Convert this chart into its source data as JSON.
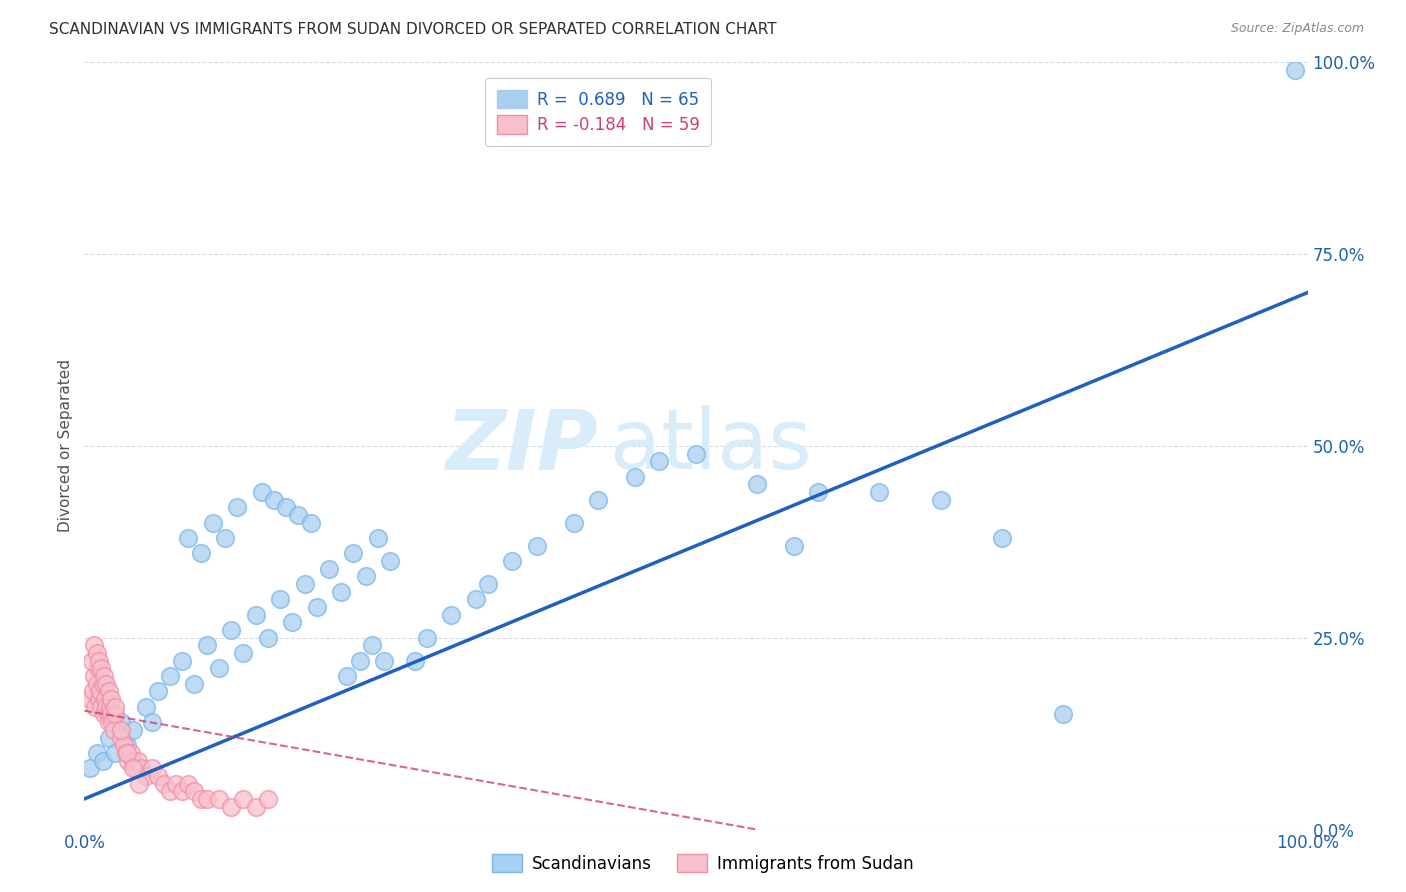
{
  "title": "SCANDINAVIAN VS IMMIGRANTS FROM SUDAN DIVORCED OR SEPARATED CORRELATION CHART",
  "source": "Source: ZipAtlas.com",
  "ylabel": "Divorced or Separated",
  "xlim": [
    0,
    1.0
  ],
  "ylim": [
    0,
    1.0
  ],
  "ytick_labels": [
    "0.0%",
    "25.0%",
    "50.0%",
    "75.0%",
    "100.0%"
  ],
  "ytick_positions": [
    0.0,
    0.25,
    0.5,
    0.75,
    1.0
  ],
  "blue_color": "#A8D0F0",
  "blue_edge_color": "#7EB6E8",
  "pink_fill_color": "#F8C0CC",
  "pink_edge_color": "#F090A8",
  "blue_line_color": "#2060C0",
  "pink_line_color": "#D04070",
  "watermark_color": "#D8ECFA",
  "background_color": "#FFFFFF",
  "grid_color": "#D0D8E0",
  "title_color": "#303030",
  "axis_label_color": "#505050",
  "tick_color": "#2060B0",
  "scandinavians_x": [
    0.005,
    0.01,
    0.015,
    0.02,
    0.025,
    0.03,
    0.035,
    0.04,
    0.05,
    0.055,
    0.06,
    0.07,
    0.08,
    0.09,
    0.1,
    0.11,
    0.12,
    0.13,
    0.14,
    0.15,
    0.16,
    0.17,
    0.18,
    0.19,
    0.2,
    0.21,
    0.22,
    0.23,
    0.24,
    0.25,
    0.27,
    0.28,
    0.3,
    0.32,
    0.33,
    0.35,
    0.37,
    0.4,
    0.42,
    0.45,
    0.47,
    0.5,
    0.55,
    0.58,
    0.6,
    0.65,
    0.7,
    0.75,
    0.8,
    0.085,
    0.095,
    0.105,
    0.115,
    0.125,
    0.145,
    0.155,
    0.165,
    0.175,
    0.185,
    0.215,
    0.225,
    0.235,
    0.245,
    0.99
  ],
  "scandinavians_y": [
    0.08,
    0.1,
    0.09,
    0.12,
    0.1,
    0.14,
    0.11,
    0.13,
    0.16,
    0.14,
    0.18,
    0.2,
    0.22,
    0.19,
    0.24,
    0.21,
    0.26,
    0.23,
    0.28,
    0.25,
    0.3,
    0.27,
    0.32,
    0.29,
    0.34,
    0.31,
    0.36,
    0.33,
    0.38,
    0.35,
    0.22,
    0.25,
    0.28,
    0.3,
    0.32,
    0.35,
    0.37,
    0.4,
    0.43,
    0.46,
    0.48,
    0.49,
    0.45,
    0.37,
    0.44,
    0.44,
    0.43,
    0.38,
    0.15,
    0.38,
    0.36,
    0.4,
    0.38,
    0.42,
    0.44,
    0.43,
    0.42,
    0.41,
    0.4,
    0.2,
    0.22,
    0.24,
    0.22,
    0.99
  ],
  "sudan_x": [
    0.005,
    0.007,
    0.008,
    0.009,
    0.01,
    0.011,
    0.012,
    0.013,
    0.014,
    0.015,
    0.016,
    0.017,
    0.018,
    0.019,
    0.02,
    0.021,
    0.022,
    0.023,
    0.024,
    0.025,
    0.03,
    0.032,
    0.034,
    0.036,
    0.038,
    0.04,
    0.042,
    0.044,
    0.046,
    0.05,
    0.055,
    0.06,
    0.065,
    0.07,
    0.075,
    0.08,
    0.085,
    0.09,
    0.095,
    0.1,
    0.11,
    0.12,
    0.13,
    0.14,
    0.15,
    0.006,
    0.008,
    0.01,
    0.012,
    0.014,
    0.016,
    0.018,
    0.02,
    0.022,
    0.025,
    0.03,
    0.035,
    0.04,
    0.045
  ],
  "sudan_y": [
    0.17,
    0.18,
    0.2,
    0.16,
    0.19,
    0.21,
    0.17,
    0.18,
    0.16,
    0.19,
    0.15,
    0.17,
    0.16,
    0.15,
    0.14,
    0.16,
    0.15,
    0.14,
    0.13,
    0.15,
    0.12,
    0.11,
    0.1,
    0.09,
    0.1,
    0.09,
    0.08,
    0.09,
    0.08,
    0.07,
    0.08,
    0.07,
    0.06,
    0.05,
    0.06,
    0.05,
    0.06,
    0.05,
    0.04,
    0.04,
    0.04,
    0.03,
    0.04,
    0.03,
    0.04,
    0.22,
    0.24,
    0.23,
    0.22,
    0.21,
    0.2,
    0.19,
    0.18,
    0.17,
    0.16,
    0.13,
    0.1,
    0.08,
    0.06
  ],
  "blue_trend_x": [
    0.0,
    1.0
  ],
  "blue_trend_y": [
    0.04,
    0.7
  ],
  "pink_trend_x": [
    0.0,
    0.55
  ],
  "pink_trend_y": [
    0.155,
    0.0
  ]
}
